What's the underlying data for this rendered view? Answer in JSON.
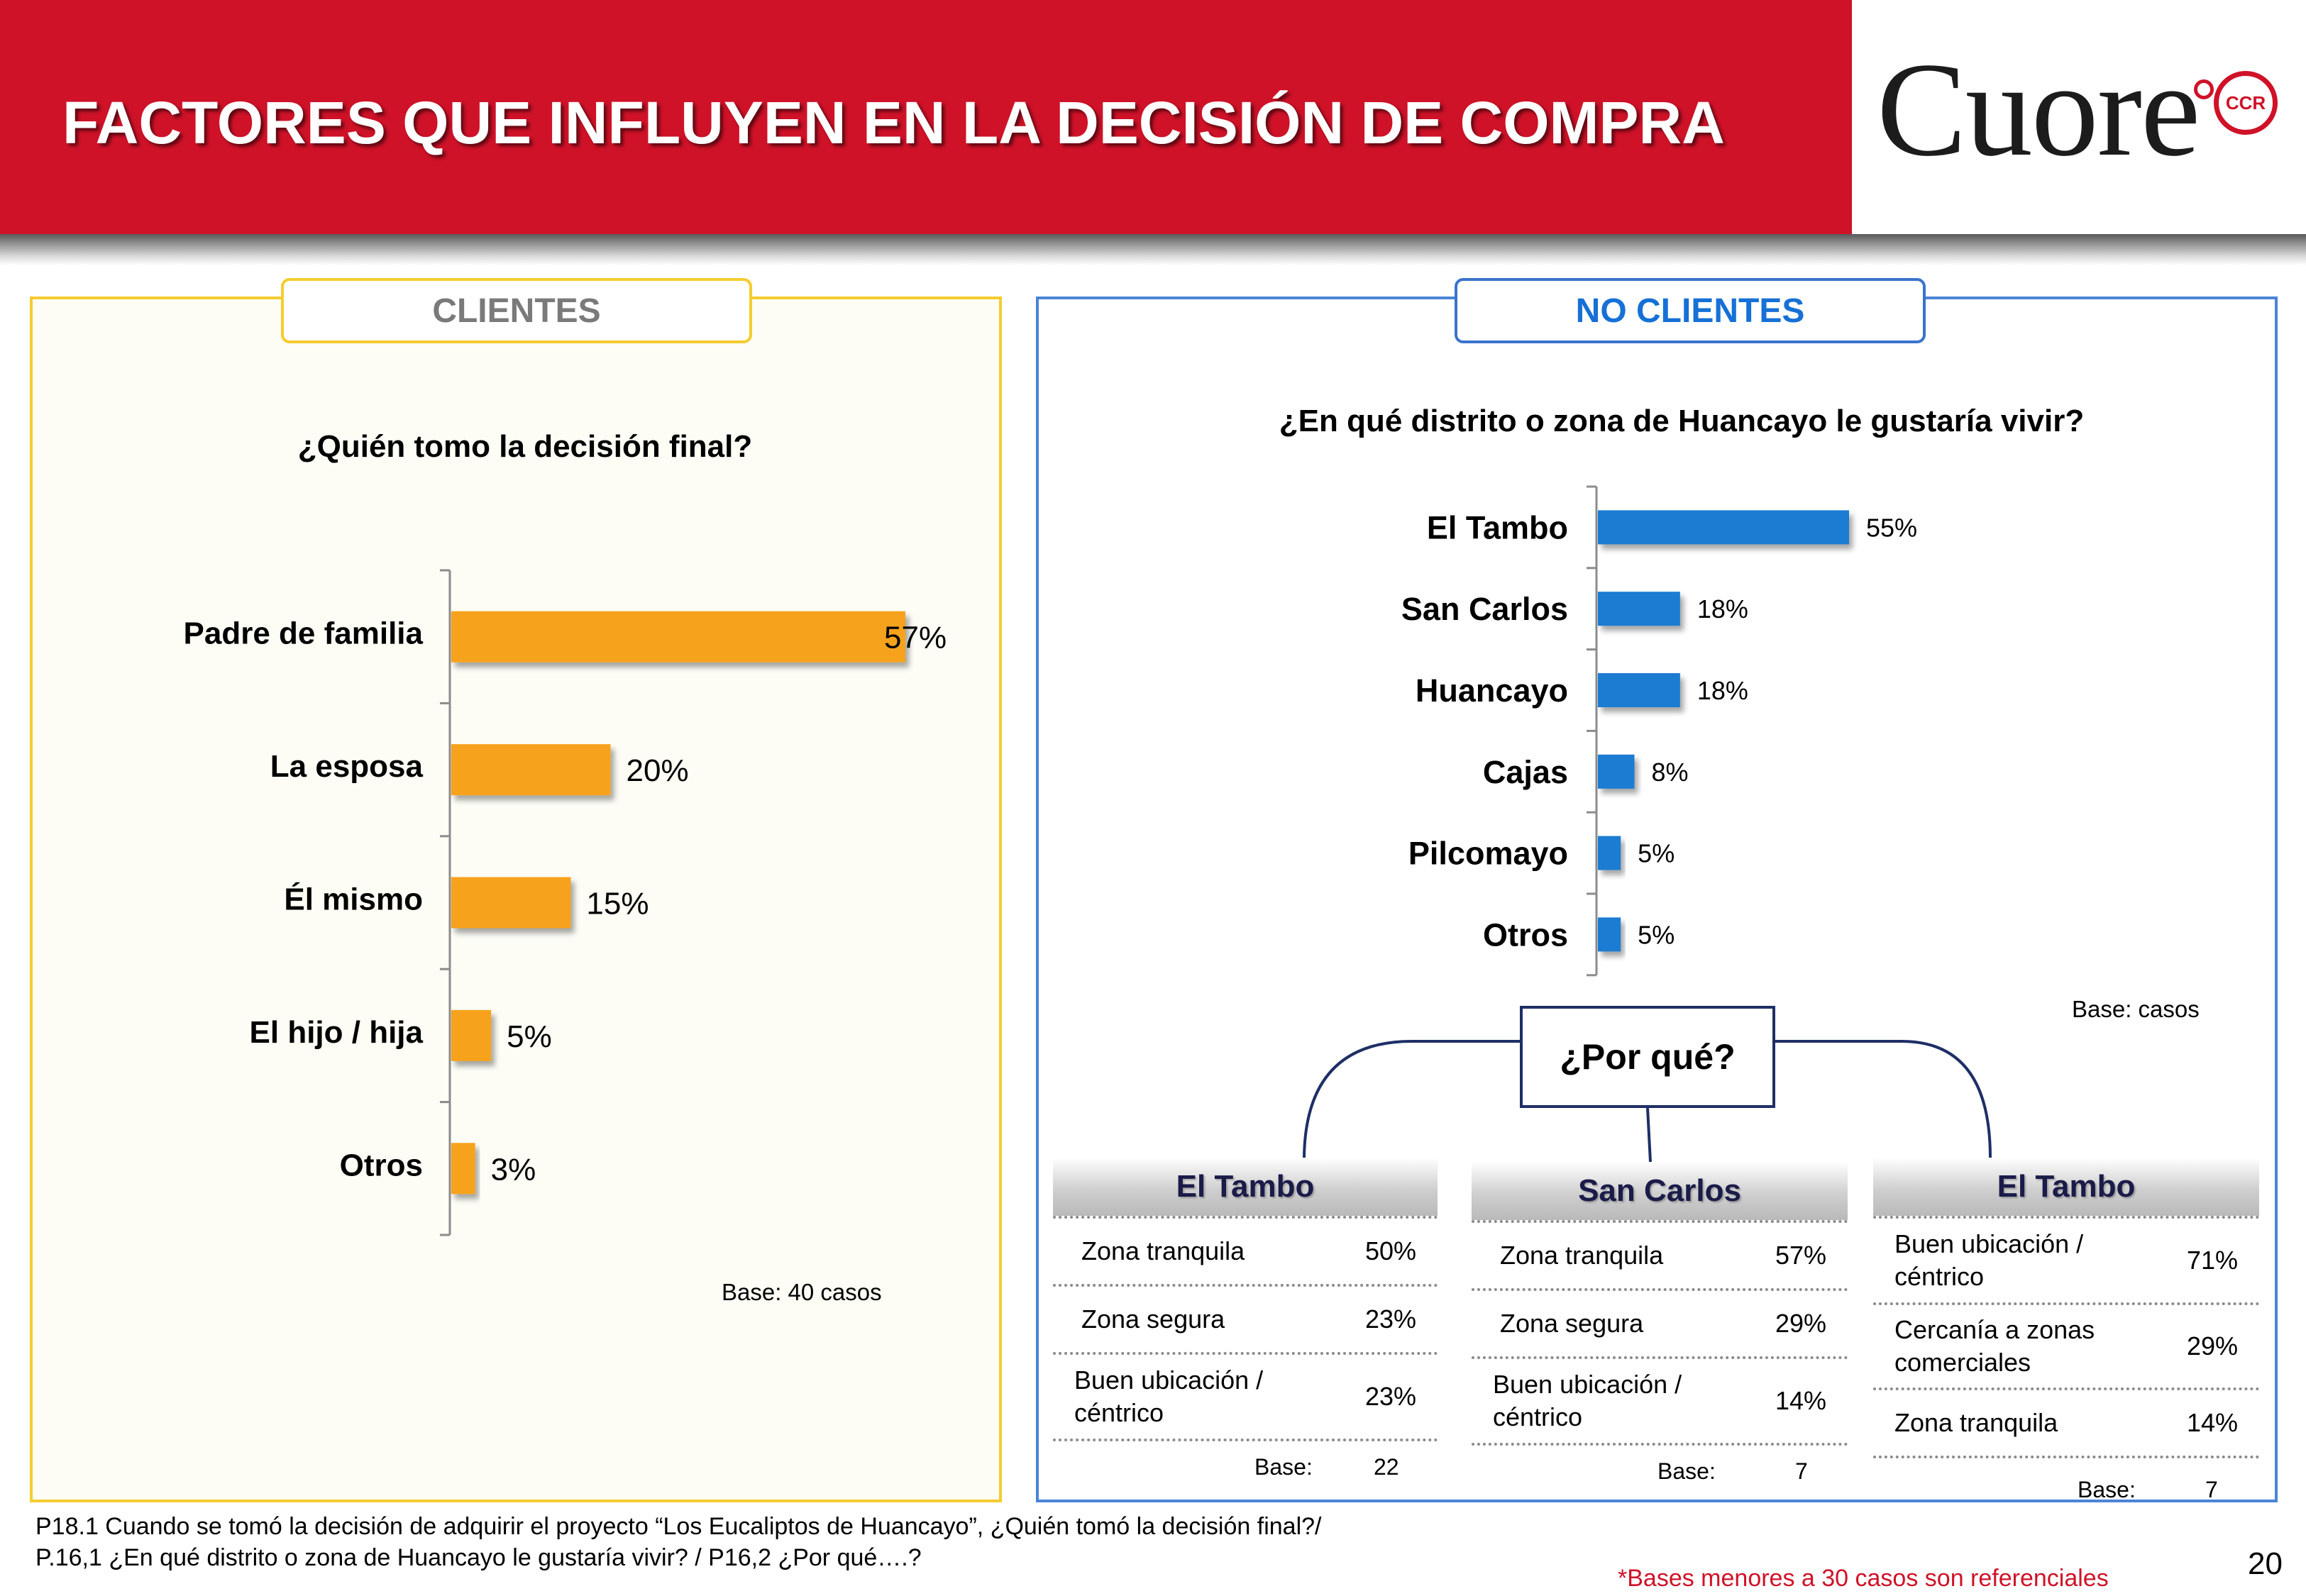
{
  "header": {
    "title": "FACTORES QUE INFLUYEN EN LA DECISIÓN DE COMPRA",
    "logo_text": "Cuore",
    "logo_badge": "CCR",
    "brand_color": "#cf1228"
  },
  "clientes": {
    "tab_label": "CLIENTES",
    "question": "¿Quién tomo la decisión final?",
    "base_note": "Base:  40 casos"
  },
  "no_clientes": {
    "tab_label": "NO CLIENTES",
    "question": "¿En qué distrito o zona de Huancayo le gustaría vivir?",
    "base_note": "Base:  casos",
    "why_label": "¿Por qué?"
  },
  "chart_data": [
    {
      "type": "bar",
      "orientation": "horizontal",
      "title": "¿Quién tomo la decisión final?",
      "categories": [
        "Padre de familia",
        "La esposa",
        "Él mismo",
        "El hijo / hija",
        "Otros"
      ],
      "values": [
        57,
        20,
        15,
        5,
        3
      ],
      "value_labels": [
        "57%",
        "20%",
        "15%",
        "5%",
        "3%"
      ],
      "unit": "%",
      "color": "#f7a21b",
      "xlim": [
        0,
        60
      ]
    },
    {
      "type": "bar",
      "orientation": "horizontal",
      "title": "¿En qué distrito o zona de Huancayo le gustaría vivir?",
      "categories": [
        "El Tambo",
        "San Carlos",
        "Huancayo",
        "Cajas",
        "Pilcomayo",
        "Otros"
      ],
      "values": [
        55,
        18,
        18,
        8,
        5,
        5
      ],
      "value_labels": [
        "55%",
        "18%",
        "18%",
        "8%",
        "5%",
        "5%"
      ],
      "unit": "%",
      "color": "#1a7bd1",
      "xlim": [
        0,
        60
      ]
    }
  ],
  "why_tables": [
    {
      "title": "El Tambo",
      "rows": [
        {
          "label": "Zona tranquila",
          "value": "50%"
        },
        {
          "label": "Zona segura",
          "value": "23%"
        },
        {
          "label": "Buen ubicación / céntrico",
          "value": "23%"
        }
      ],
      "base_label": "Base:",
      "base_value": "22"
    },
    {
      "title": "San Carlos",
      "rows": [
        {
          "label": "Zona tranquila",
          "value": "57%"
        },
        {
          "label": "Zona segura",
          "value": "29%"
        },
        {
          "label": "Buen ubicación / céntrico",
          "value": "14%"
        }
      ],
      "base_label": "Base:",
      "base_value": "7"
    },
    {
      "title": "El Tambo",
      "rows": [
        {
          "label": "Buen ubicación / céntrico",
          "value": "71%"
        },
        {
          "label": "Cercanía a zonas comerciales",
          "value": "29%"
        },
        {
          "label": "Zona tranquila",
          "value": "14%"
        }
      ],
      "base_label": "Base:",
      "base_value": "7"
    }
  ],
  "footer": {
    "footnote_line1": "P18.1 Cuando se tomó la decisión de adquirir el proyecto “Los Eucaliptos de Huancayo”, ¿Quién tomó la decisión final?/",
    "footnote_line2": "P.16,1 ¿En qué distrito o zona de Huancayo le gustaría vivir? / P16,2 ¿Por qué….?",
    "reference_note": "*Bases menores a 30 casos son referenciales",
    "page_number": "20"
  }
}
